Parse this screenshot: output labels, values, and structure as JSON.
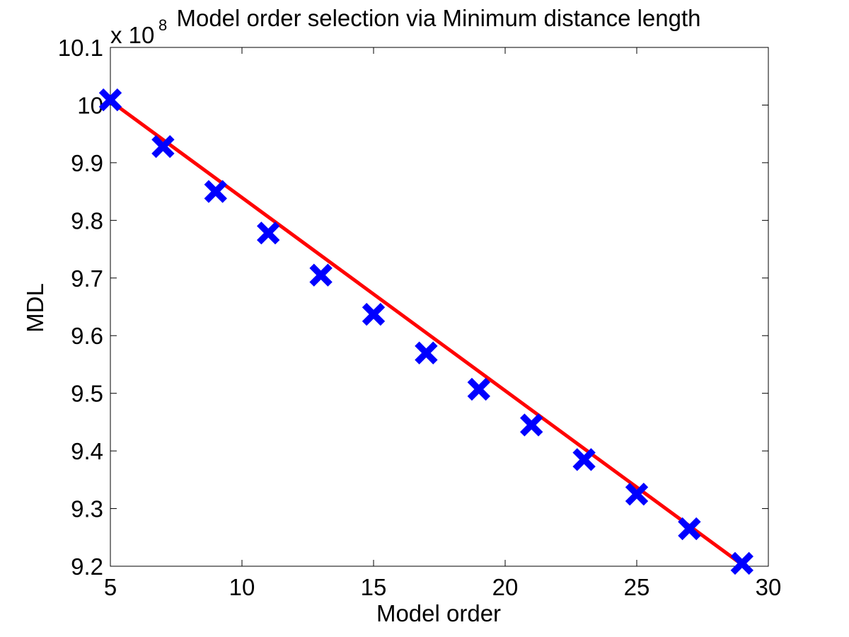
{
  "chart_data": {
    "type": "line",
    "title": "Model order selection via Minimum distance length",
    "xlabel": "Model order",
    "ylabel": "MDL",
    "y_exponent_label": "x 10",
    "y_exponent_power": "8",
    "xlim": [
      5,
      30
    ],
    "ylim": [
      9.2,
      10.1
    ],
    "xticks": [
      "5",
      "10",
      "15",
      "20",
      "25",
      "30"
    ],
    "yticks": [
      "9.2",
      "9.3",
      "9.4",
      "9.5",
      "9.6",
      "9.7",
      "9.8",
      "9.9",
      "10",
      "10.1"
    ],
    "grid": false,
    "series": [
      {
        "style": "markers",
        "marker": "x",
        "color": "#0000ff",
        "x": [
          5,
          7,
          9,
          11,
          13,
          15,
          17,
          19,
          21,
          23,
          25,
          27,
          29
        ],
        "y": [
          10.009,
          9.928,
          9.85,
          9.778,
          9.705,
          9.637,
          9.57,
          9.507,
          9.445,
          9.385,
          9.325,
          9.265,
          9.205
        ]
      },
      {
        "style": "line",
        "color": "#ff0000",
        "x": [
          5,
          29
        ],
        "y": [
          10.007,
          9.203
        ]
      }
    ]
  }
}
